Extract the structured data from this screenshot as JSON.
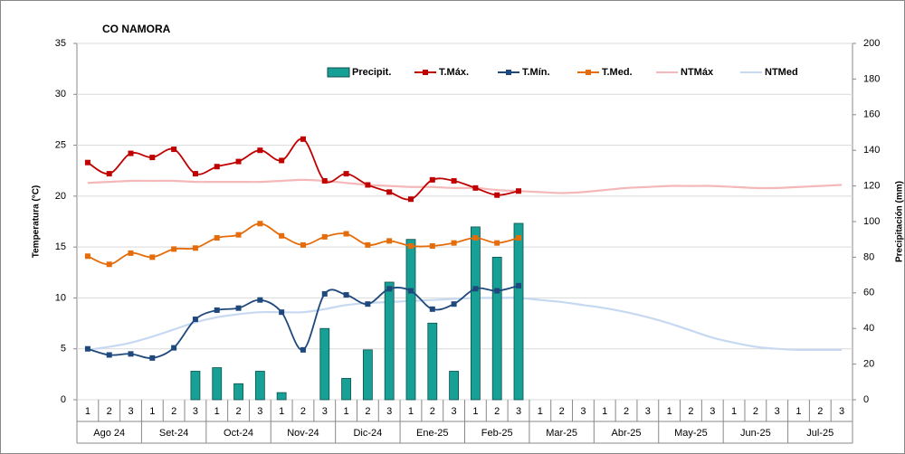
{
  "chart_data": {
    "type": "combo",
    "title": "CO NAMORA",
    "y_label": "Temperatura (°C)",
    "y2_label": "Precipitación (mm)",
    "categories": [
      "1",
      "2",
      "3",
      "1",
      "2",
      "3",
      "1",
      "2",
      "3",
      "1",
      "2",
      "3",
      "1",
      "2",
      "3",
      "1",
      "2",
      "3",
      "1",
      "2",
      "3",
      "1",
      "2",
      "3",
      "1",
      "2",
      "3",
      "1",
      "2",
      "3",
      "1",
      "2",
      "3",
      "1",
      "2",
      "3"
    ],
    "months": [
      "Ago 24",
      "Set-24",
      "Oct-24",
      "Nov-24",
      "Dic-24",
      "Ene-25",
      "Feb-25",
      "Mar-25",
      "Abr-25",
      "May-25",
      "Jun-25",
      "Jul-25"
    ],
    "ylim": [
      0,
      35
    ],
    "yticks": [
      0,
      5,
      10,
      15,
      20,
      25,
      30,
      35
    ],
    "y2lim": [
      0,
      200
    ],
    "y2ticks": [
      0,
      20,
      40,
      60,
      80,
      100,
      120,
      140,
      160,
      180,
      200
    ],
    "series": [
      {
        "name": "Precipit.",
        "type": "bar",
        "axis": "y2",
        "color": "#17a096",
        "values": [
          0,
          0,
          0,
          0,
          0,
          16,
          18,
          9,
          16,
          4,
          0,
          40,
          12,
          28,
          66,
          90,
          43,
          16,
          97,
          80,
          99,
          null,
          null,
          null,
          null,
          null,
          null,
          null,
          null,
          null,
          null,
          null,
          null,
          null,
          null,
          null
        ]
      },
      {
        "name": "T.Máx.",
        "type": "line",
        "marker": true,
        "color": "#c00000",
        "values": [
          23.3,
          22.2,
          24.2,
          23.8,
          24.6,
          22.2,
          22.9,
          23.4,
          24.5,
          23.5,
          25.6,
          21.5,
          22.2,
          21.1,
          20.4,
          19.7,
          21.6,
          21.5,
          20.8,
          20.1,
          20.5,
          null,
          null,
          null,
          null,
          null,
          null,
          null,
          null,
          null,
          null,
          null,
          null,
          null,
          null,
          null
        ]
      },
      {
        "name": "T.Mín.",
        "type": "line",
        "marker": true,
        "color": "#1f497d",
        "values": [
          5.0,
          4.4,
          4.5,
          4.1,
          5.1,
          7.9,
          8.8,
          9.0,
          9.8,
          8.6,
          4.9,
          10.4,
          10.3,
          9.4,
          10.9,
          10.7,
          8.9,
          9.4,
          10.9,
          10.7,
          11.2,
          null,
          null,
          null,
          null,
          null,
          null,
          null,
          null,
          null,
          null,
          null,
          null,
          null,
          null,
          null
        ]
      },
      {
        "name": "T.Med.",
        "type": "line",
        "marker": true,
        "color": "#e46c0a",
        "values": [
          14.1,
          13.3,
          14.4,
          14.0,
          14.8,
          14.9,
          15.9,
          16.2,
          17.3,
          16.1,
          15.2,
          16.0,
          16.3,
          15.2,
          15.6,
          15.1,
          15.1,
          15.4,
          15.9,
          15.4,
          15.9,
          null,
          null,
          null,
          null,
          null,
          null,
          null,
          null,
          null,
          null,
          null,
          null,
          null,
          null,
          null
        ]
      },
      {
        "name": "NTMáx",
        "type": "line",
        "marker": false,
        "color": "#f4b8b8",
        "values": [
          21.3,
          21.4,
          21.5,
          21.5,
          21.5,
          21.4,
          21.4,
          21.4,
          21.4,
          21.5,
          21.6,
          21.5,
          21.3,
          21.1,
          21.0,
          20.9,
          20.9,
          20.8,
          20.8,
          20.6,
          20.5,
          20.4,
          20.3,
          20.4,
          20.6,
          20.8,
          20.9,
          21.0,
          21.0,
          21.0,
          20.9,
          20.8,
          20.8,
          20.9,
          21.0,
          21.1
        ]
      },
      {
        "name": "NTMed",
        "type": "line",
        "marker": false,
        "color": "#c6d9f1",
        "values": [
          4.9,
          5.2,
          5.6,
          6.2,
          6.9,
          7.6,
          8.1,
          8.4,
          8.6,
          8.6,
          8.6,
          8.9,
          9.3,
          9.5,
          9.6,
          9.7,
          9.8,
          9.9,
          10.0,
          10.0,
          10.0,
          9.8,
          9.6,
          9.3,
          9.0,
          8.6,
          8.1,
          7.5,
          6.8,
          6.1,
          5.6,
          5.2,
          5.0,
          4.9,
          4.9,
          4.9
        ]
      }
    ]
  }
}
